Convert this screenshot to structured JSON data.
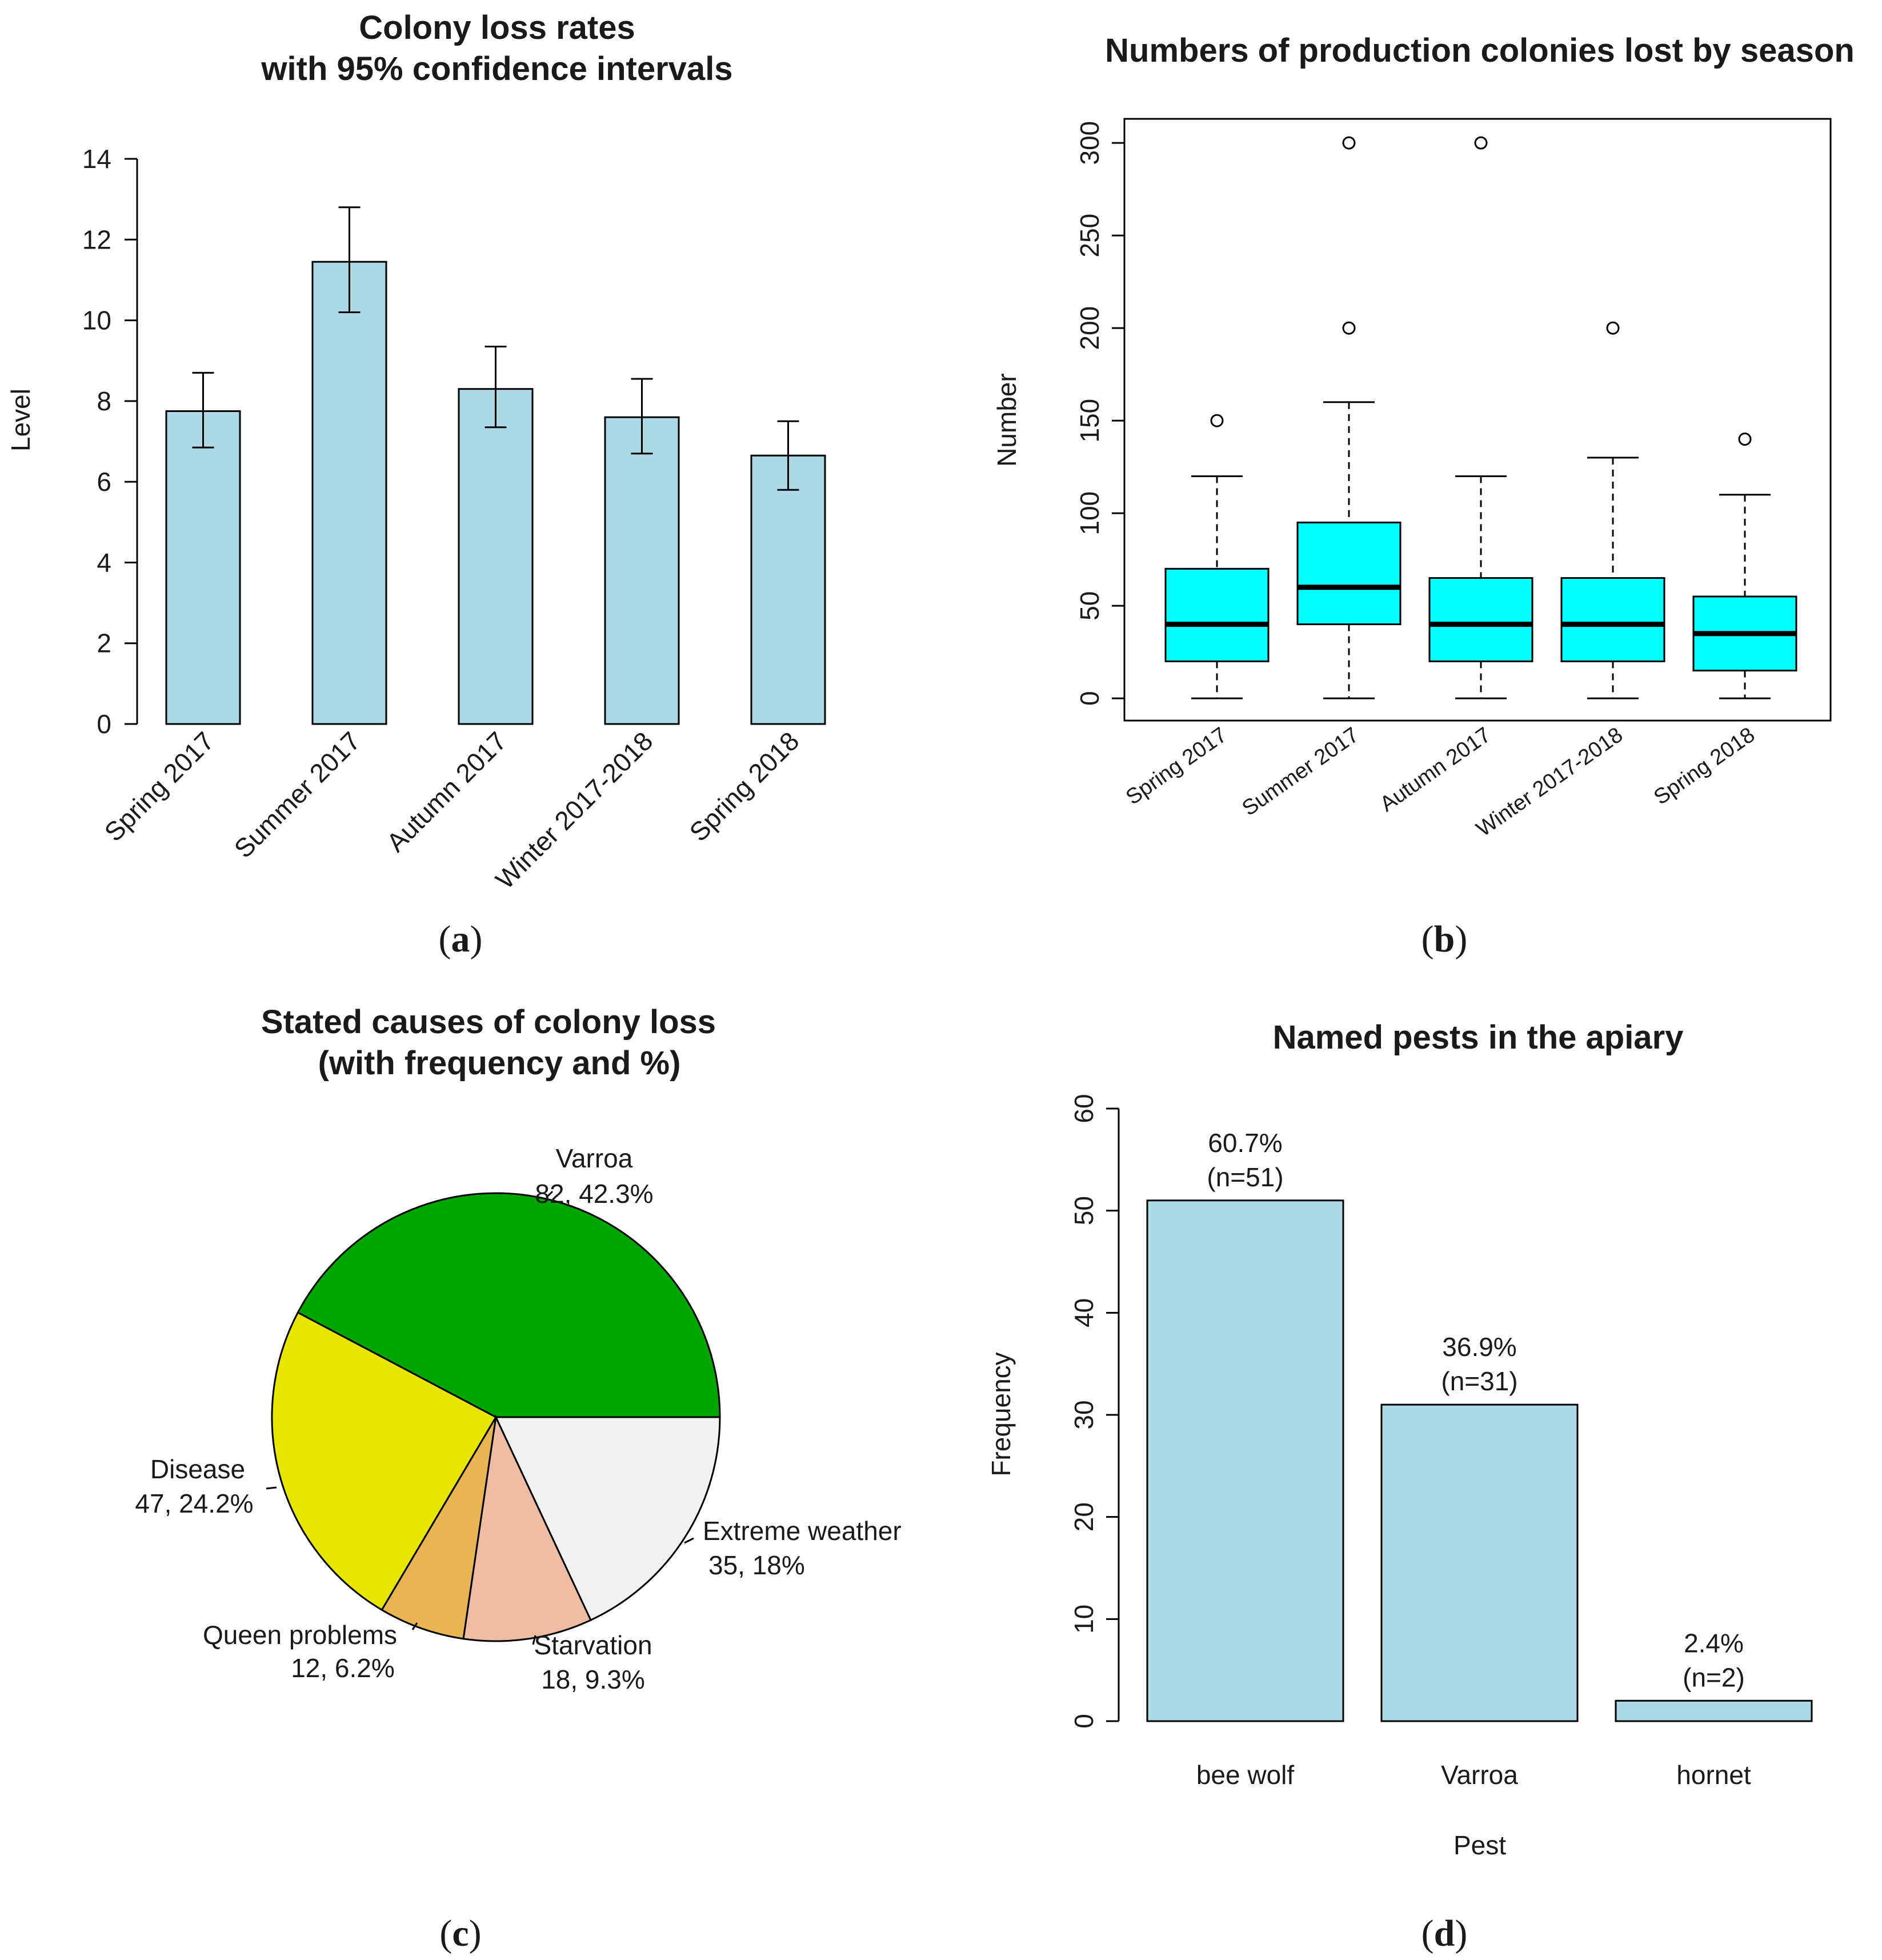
{
  "chart_data": [
    {
      "type": "bar",
      "panel_label": "a",
      "title_lines": [
        "Colony loss rates",
        "with 95% confidence intervals"
      ],
      "ylabel": "Level",
      "xlabel": "",
      "categories": [
        "Spring 2017",
        "Summer 2017",
        "Autumn 2017",
        "Winter 2017-2018",
        "Spring 2018"
      ],
      "values": [
        7.75,
        11.45,
        8.3,
        7.6,
        6.65
      ],
      "ci_low": [
        6.85,
        10.2,
        7.35,
        6.7,
        5.8
      ],
      "ci_high": [
        8.7,
        12.8,
        9.35,
        8.55,
        7.5
      ],
      "ylim": [
        0,
        14
      ],
      "yticks": [
        "0",
        "2",
        "4",
        "6",
        "8",
        "10",
        "12",
        "14"
      ],
      "bar_color": "#add8e6"
    },
    {
      "type": "boxplot",
      "panel_label": "b",
      "title": "Numbers of production colonies lost by season",
      "ylabel": "Number",
      "xlabel": "",
      "categories": [
        "Spring 2017",
        "Summer 2017",
        "Autumn 2017",
        "Winter 2017-2018",
        "Spring 2018"
      ],
      "boxes": [
        {
          "min": 0,
          "q1": 20,
          "median": 40,
          "q3": 70,
          "max": 120,
          "outliers": [
            150
          ]
        },
        {
          "min": 0,
          "q1": 40,
          "median": 60,
          "q3": 95,
          "max": 160,
          "outliers": [
            200,
            300
          ]
        },
        {
          "min": 0,
          "q1": 20,
          "median": 40,
          "q3": 65,
          "max": 120,
          "outliers": [
            300
          ]
        },
        {
          "min": 0,
          "q1": 20,
          "median": 40,
          "q3": 65,
          "max": 130,
          "outliers": [
            200
          ]
        },
        {
          "min": 0,
          "q1": 15,
          "median": 35,
          "q3": 55,
          "max": 110,
          "outliers": [
            140
          ]
        }
      ],
      "ylim": [
        -12,
        313
      ],
      "yticks": [
        "0",
        "50",
        "100",
        "150",
        "200",
        "250",
        "300"
      ],
      "box_color": "#00ffff"
    },
    {
      "type": "pie",
      "panel_label": "c",
      "title_lines": [
        "Stated causes of colony loss",
        "(with frequency and %)"
      ],
      "slices": [
        {
          "name": "Varroa",
          "value": 82,
          "label": "82, 42.3%",
          "color": "#00a600"
        },
        {
          "name": "Disease",
          "value": 47,
          "label": "47, 24.2%",
          "color": "#e6e600"
        },
        {
          "name": "Queen problems",
          "value": 12,
          "label": "12, 6.2%",
          "color": "#e8b552"
        },
        {
          "name": "Starvation",
          "value": 18,
          "label": "18, 9.3%",
          "color": "#eebda3"
        },
        {
          "name": "Extreme weather",
          "value": 35,
          "label": "35, 18%",
          "color": "#f2f2f2"
        }
      ]
    },
    {
      "type": "bar",
      "panel_label": "d",
      "title": "Named pests in the apiary",
      "ylabel": "Frequency",
      "xlabel": "Pest",
      "categories": [
        "bee wolf",
        "Varroa",
        "hornet"
      ],
      "values": [
        51,
        31,
        2
      ],
      "value_labels": [
        [
          "60.7%",
          "(n=51)"
        ],
        [
          "36.9%",
          "(n=31)"
        ],
        [
          "2.4%",
          "(n=2)"
        ]
      ],
      "ylim": [
        0,
        60
      ],
      "yticks": [
        "0",
        "10",
        "20",
        "30",
        "40",
        "50",
        "60"
      ],
      "bar_color": "#add8e6"
    }
  ]
}
